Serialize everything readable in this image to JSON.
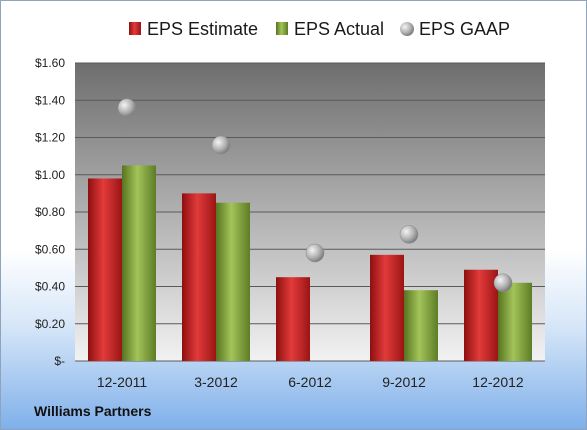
{
  "company": "Williams Partners",
  "chart_data": {
    "type": "bar",
    "categories": [
      "12-2011",
      "3-2012",
      "6-2012",
      "9-2012",
      "12-2012"
    ],
    "series": [
      {
        "name": "EPS Estimate",
        "kind": "bar",
        "color": "#c81e1e",
        "values": [
          0.98,
          0.9,
          0.45,
          0.57,
          0.49
        ]
      },
      {
        "name": "EPS Actual",
        "kind": "bar",
        "color": "#7ea03a",
        "values": [
          1.05,
          0.85,
          null,
          0.38,
          0.42
        ]
      },
      {
        "name": "EPS GAAP",
        "kind": "marker",
        "color": "#a9a9a9",
        "values": [
          1.36,
          1.16,
          0.58,
          0.68,
          0.42
        ]
      }
    ],
    "yticks": [
      "$-",
      "$0.20",
      "$0.40",
      "$0.60",
      "$0.80",
      "$1.00",
      "$1.20",
      "$1.40",
      "$1.60"
    ],
    "ylim": [
      0,
      1.6
    ],
    "ystep": 0.2,
    "grid": true,
    "legend_position": "top",
    "plot_background": "#a6a6a6"
  }
}
